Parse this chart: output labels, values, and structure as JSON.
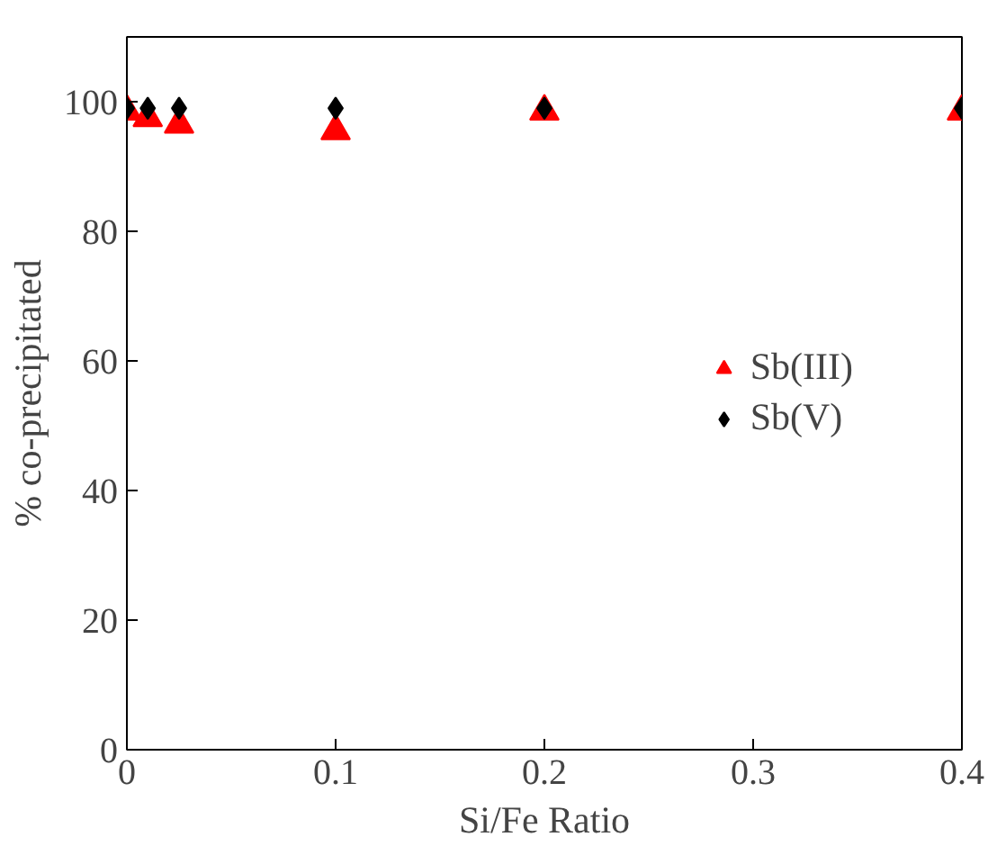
{
  "chart_data": {
    "type": "scatter",
    "xlabel": "Si/Fe Ratio",
    "ylabel": "% co-precipitated",
    "x": [
      0,
      0.01,
      0.025,
      0.1,
      0.2,
      0.4
    ],
    "series": [
      {
        "name": "Sb(III)",
        "color": "#ff0000",
        "marker": "triangle",
        "values": [
          98.5,
          97.5,
          96.5,
          95.5,
          98.5,
          98.5
        ]
      },
      {
        "name": "Sb(V)",
        "color": "#000000",
        "marker": "diamond",
        "values": [
          99,
          99,
          99,
          99,
          99,
          99
        ]
      }
    ],
    "xlim": [
      0,
      0.4
    ],
    "xticks": [
      0,
      0.1,
      0.2,
      0.3,
      0.4
    ],
    "ylim": [
      0,
      110
    ],
    "yticks": [
      0,
      20,
      40,
      60,
      80,
      100
    ],
    "grid": false,
    "legend": "right"
  }
}
